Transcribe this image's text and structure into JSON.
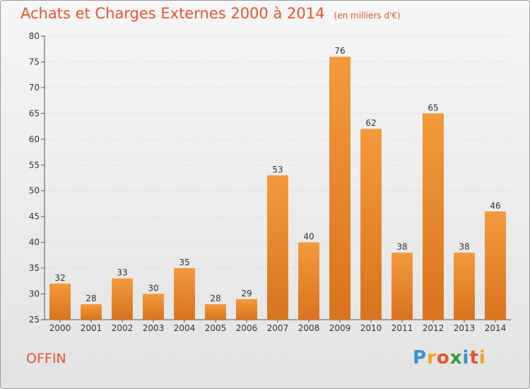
{
  "chart_data": {
    "type": "bar",
    "title": "Achats et Charges Externes 2000 à 2014",
    "subtitle": "(en milliers d'€)",
    "categories": [
      "2000",
      "2001",
      "2002",
      "2003",
      "2004",
      "2005",
      "2006",
      "2007",
      "2008",
      "2009",
      "2010",
      "2011",
      "2012",
      "2013",
      "2014"
    ],
    "values": [
      32,
      28,
      33,
      30,
      35,
      28,
      29,
      53,
      40,
      76,
      62,
      38,
      65,
      38,
      46
    ],
    "ylim": [
      25,
      80
    ],
    "yticks": [
      25,
      30,
      35,
      40,
      45,
      50,
      55,
      60,
      65,
      70,
      75,
      80
    ],
    "grid": true,
    "bar_color": "#f39a3c",
    "bar_color_dark": "#d9731d"
  },
  "commune": "OFFIN",
  "logo": {
    "letters": [
      "P",
      "r",
      "o",
      "x",
      "i",
      "t",
      "i"
    ],
    "colors": [
      "#3a8fd6",
      "#f2a21b",
      "#e8542f",
      "#2e9f3e",
      "#3a8fd6",
      "#e8542f",
      "#f2a21b"
    ]
  },
  "title_color": "#e8542f"
}
